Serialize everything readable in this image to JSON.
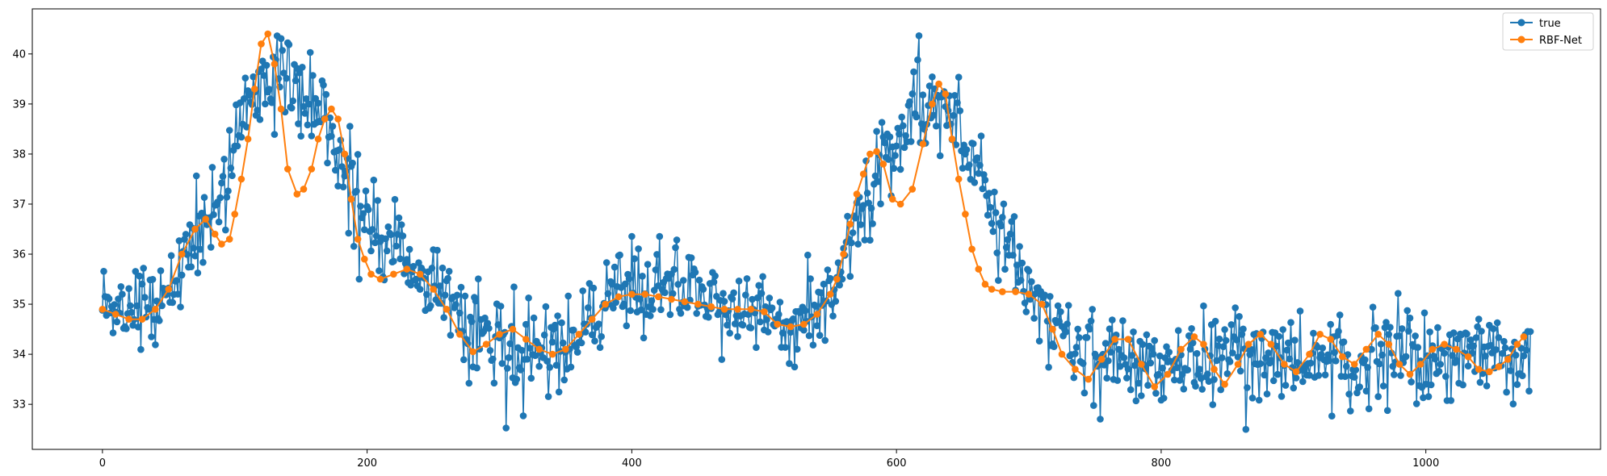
{
  "chart_data": {
    "type": "line",
    "title": "",
    "xlabel": "",
    "ylabel": "",
    "xlim": [
      -53,
      1132
    ],
    "ylim": [
      32.1,
      40.9
    ],
    "xticks": [
      0,
      200,
      400,
      600,
      800,
      1000
    ],
    "yticks": [
      33,
      34,
      35,
      36,
      37,
      38,
      39,
      40
    ],
    "grid": false,
    "legend": {
      "position": "top-right",
      "entries": [
        "true",
        "RBF-Net"
      ]
    },
    "series": [
      {
        "name": "true",
        "color": "#1f77b4",
        "marker": "circle",
        "x_start": 0,
        "x_step": 1,
        "anchors": [
          [
            0,
            35.1
          ],
          [
            15,
            34.9
          ],
          [
            30,
            35.0
          ],
          [
            50,
            35.3
          ],
          [
            60,
            35.9
          ],
          [
            70,
            36.3
          ],
          [
            80,
            36.6
          ],
          [
            90,
            37.3
          ],
          [
            100,
            38.3
          ],
          [
            110,
            38.9
          ],
          [
            120,
            39.3
          ],
          [
            130,
            39.4
          ],
          [
            140,
            39.4
          ],
          [
            150,
            39.2
          ],
          [
            160,
            39.0
          ],
          [
            170,
            38.6
          ],
          [
            180,
            38.0
          ],
          [
            190,
            37.3
          ],
          [
            200,
            36.7
          ],
          [
            210,
            36.3
          ],
          [
            220,
            36.0
          ],
          [
            230,
            35.8
          ],
          [
            240,
            35.6
          ],
          [
            250,
            35.4
          ],
          [
            260,
            35.1
          ],
          [
            270,
            34.8
          ],
          [
            280,
            34.5
          ],
          [
            290,
            34.3
          ],
          [
            300,
            34.2
          ],
          [
            310,
            34.1
          ],
          [
            320,
            34.1
          ],
          [
            330,
            34.1
          ],
          [
            340,
            34.1
          ],
          [
            350,
            34.2
          ],
          [
            360,
            34.4
          ],
          [
            370,
            34.7
          ],
          [
            380,
            34.9
          ],
          [
            390,
            35.1
          ],
          [
            400,
            35.3
          ],
          [
            410,
            35.4
          ],
          [
            420,
            35.4
          ],
          [
            430,
            35.3
          ],
          [
            440,
            35.3
          ],
          [
            450,
            35.2
          ],
          [
            460,
            35.1
          ],
          [
            470,
            35.0
          ],
          [
            480,
            35.0
          ],
          [
            490,
            34.9
          ],
          [
            500,
            34.8
          ],
          [
            510,
            34.7
          ],
          [
            520,
            34.6
          ],
          [
            530,
            34.7
          ],
          [
            540,
            34.9
          ],
          [
            550,
            35.3
          ],
          [
            560,
            35.9
          ],
          [
            570,
            36.7
          ],
          [
            580,
            37.4
          ],
          [
            590,
            37.9
          ],
          [
            600,
            38.4
          ],
          [
            610,
            38.7
          ],
          [
            620,
            38.9
          ],
          [
            630,
            39.0
          ],
          [
            640,
            38.8
          ],
          [
            650,
            38.3
          ],
          [
            660,
            37.7
          ],
          [
            670,
            37.0
          ],
          [
            680,
            36.4
          ],
          [
            690,
            35.9
          ],
          [
            700,
            35.4
          ],
          [
            710,
            35.0
          ],
          [
            720,
            34.6
          ],
          [
            730,
            34.3
          ],
          [
            740,
            34.1
          ],
          [
            760,
            33.9
          ],
          [
            800,
            33.85
          ],
          [
            850,
            33.9
          ],
          [
            900,
            33.9
          ],
          [
            950,
            33.95
          ],
          [
            1000,
            33.9
          ],
          [
            1050,
            33.95
          ],
          [
            1079,
            34.0
          ]
        ],
        "noise_amplitude": 0.9,
        "ymin": 32.5,
        "ymax": 40.5
      },
      {
        "name": "RBF-Net",
        "color": "#ff7f0e",
        "marker": "circle",
        "points": [
          [
            0,
            34.9
          ],
          [
            10,
            34.8
          ],
          [
            20,
            34.7
          ],
          [
            30,
            34.7
          ],
          [
            40,
            34.9
          ],
          [
            50,
            35.3
          ],
          [
            60,
            36.0
          ],
          [
            70,
            36.5
          ],
          [
            78,
            36.7
          ],
          [
            85,
            36.4
          ],
          [
            90,
            36.2
          ],
          [
            96,
            36.3
          ],
          [
            100,
            36.8
          ],
          [
            105,
            37.5
          ],
          [
            110,
            38.3
          ],
          [
            115,
            39.3
          ],
          [
            120,
            40.2
          ],
          [
            125,
            40.4
          ],
          [
            130,
            39.8
          ],
          [
            135,
            38.9
          ],
          [
            140,
            37.7
          ],
          [
            147,
            37.2
          ],
          [
            152,
            37.3
          ],
          [
            158,
            37.7
          ],
          [
            163,
            38.3
          ],
          [
            168,
            38.7
          ],
          [
            173,
            38.9
          ],
          [
            178,
            38.7
          ],
          [
            183,
            38.0
          ],
          [
            188,
            37.1
          ],
          [
            193,
            36.3
          ],
          [
            198,
            35.9
          ],
          [
            203,
            35.6
          ],
          [
            210,
            35.5
          ],
          [
            220,
            35.6
          ],
          [
            230,
            35.7
          ],
          [
            240,
            35.6
          ],
          [
            250,
            35.3
          ],
          [
            260,
            34.9
          ],
          [
            270,
            34.4
          ],
          [
            280,
            34.05
          ],
          [
            290,
            34.2
          ],
          [
            300,
            34.4
          ],
          [
            310,
            34.5
          ],
          [
            320,
            34.3
          ],
          [
            330,
            34.1
          ],
          [
            340,
            34.0
          ],
          [
            350,
            34.1
          ],
          [
            360,
            34.4
          ],
          [
            370,
            34.7
          ],
          [
            380,
            35.0
          ],
          [
            390,
            35.15
          ],
          [
            400,
            35.2
          ],
          [
            410,
            35.2
          ],
          [
            420,
            35.15
          ],
          [
            430,
            35.1
          ],
          [
            440,
            35.05
          ],
          [
            450,
            35.0
          ],
          [
            460,
            34.95
          ],
          [
            470,
            34.9
          ],
          [
            480,
            34.9
          ],
          [
            490,
            34.9
          ],
          [
            500,
            34.85
          ],
          [
            510,
            34.6
          ],
          [
            520,
            34.55
          ],
          [
            530,
            34.6
          ],
          [
            540,
            34.8
          ],
          [
            550,
            35.2
          ],
          [
            555,
            35.5
          ],
          [
            560,
            36.0
          ],
          [
            565,
            36.6
          ],
          [
            570,
            37.2
          ],
          [
            575,
            37.6
          ],
          [
            580,
            38.0
          ],
          [
            585,
            38.05
          ],
          [
            590,
            37.8
          ],
          [
            597,
            37.1
          ],
          [
            603,
            37.0
          ],
          [
            612,
            37.3
          ],
          [
            620,
            38.2
          ],
          [
            627,
            39.0
          ],
          [
            632,
            39.4
          ],
          [
            637,
            39.2
          ],
          [
            642,
            38.3
          ],
          [
            647,
            37.5
          ],
          [
            652,
            36.8
          ],
          [
            657,
            36.1
          ],
          [
            662,
            35.7
          ],
          [
            667,
            35.4
          ],
          [
            672,
            35.3
          ],
          [
            680,
            35.25
          ],
          [
            690,
            35.25
          ],
          [
            700,
            35.2
          ],
          [
            710,
            35.0
          ],
          [
            718,
            34.5
          ],
          [
            725,
            34.0
          ],
          [
            735,
            33.7
          ],
          [
            745,
            33.5
          ],
          [
            755,
            33.9
          ],
          [
            765,
            34.3
          ],
          [
            775,
            34.3
          ],
          [
            785,
            33.8
          ],
          [
            795,
            33.35
          ],
          [
            805,
            33.6
          ],
          [
            815,
            34.1
          ],
          [
            825,
            34.35
          ],
          [
            832,
            34.2
          ],
          [
            840,
            33.7
          ],
          [
            848,
            33.4
          ],
          [
            858,
            33.8
          ],
          [
            866,
            34.2
          ],
          [
            875,
            34.4
          ],
          [
            883,
            34.2
          ],
          [
            893,
            33.8
          ],
          [
            902,
            33.65
          ],
          [
            912,
            34.0
          ],
          [
            920,
            34.4
          ],
          [
            928,
            34.3
          ],
          [
            937,
            33.95
          ],
          [
            946,
            33.8
          ],
          [
            955,
            34.1
          ],
          [
            964,
            34.4
          ],
          [
            972,
            34.2
          ],
          [
            980,
            33.8
          ],
          [
            988,
            33.6
          ],
          [
            996,
            33.8
          ],
          [
            1005,
            34.1
          ],
          [
            1014,
            34.2
          ],
          [
            1023,
            34.1
          ],
          [
            1032,
            33.95
          ],
          [
            1040,
            33.7
          ],
          [
            1048,
            33.65
          ],
          [
            1055,
            33.75
          ],
          [
            1062,
            33.9
          ],
          [
            1069,
            34.2
          ],
          [
            1074,
            34.35
          ]
        ]
      }
    ]
  }
}
